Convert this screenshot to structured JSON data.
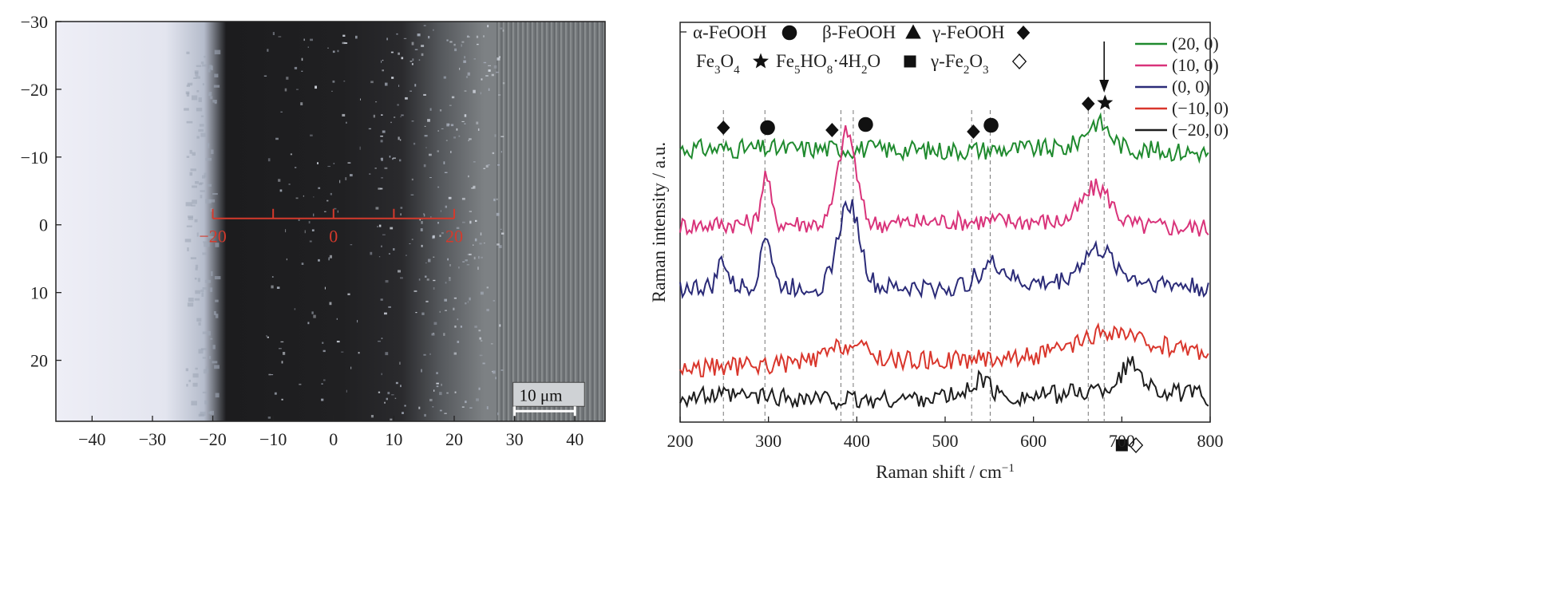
{
  "chart_data": [
    {
      "type": "image-with-axes",
      "xlim": [
        -46,
        45
      ],
      "ylim": [
        -30,
        29
      ],
      "x_ticks": [
        -40,
        -30,
        -20,
        -10,
        0,
        10,
        20,
        30,
        40
      ],
      "y_ticks": [
        -30,
        -20,
        -10,
        0,
        10,
        20
      ],
      "tick_labels_x": [
        "−40",
        "−30",
        "−20",
        "−10",
        "0",
        "10",
        "20",
        "30",
        "40"
      ],
      "tick_labels_y": [
        "−30",
        "−20",
        "−10",
        "0",
        "10",
        "20"
      ],
      "measurement_line": {
        "y": 0,
        "ticks": [
          -20,
          -10,
          0,
          10,
          20
        ],
        "labels": [
          "−20",
          "0",
          "20"
        ],
        "color": "#d43a2c"
      },
      "scale_bar": {
        "label": "10 μm",
        "length_um": 10,
        "x_start": 30,
        "y": 27.5
      }
    },
    {
      "type": "line",
      "xlabel": "Raman shift / cm",
      "xlabel_sup": "−1",
      "ylabel": "Raman intensity / a.u.",
      "xlim": [
        200,
        800
      ],
      "x_ticks": [
        200,
        300,
        400,
        500,
        600,
        700,
        800
      ],
      "x_tick_labels": [
        "200",
        "300",
        "400",
        "500",
        "600",
        "700",
        "800"
      ],
      "dashed_lines": [
        249,
        296,
        382,
        396,
        530,
        551,
        662,
        680
      ],
      "series": [
        {
          "name": "(20, 0)",
          "color": "#1f8a2e",
          "offset": 4,
          "base": [
            [
              200,
              0.05
            ],
            [
              300,
              0.05
            ],
            [
              400,
              0.05
            ],
            [
              500,
              0.03
            ],
            [
              600,
              0.05
            ],
            [
              700,
              0.05
            ],
            [
              800,
              0.0
            ]
          ],
          "peaks": [
            [
              672,
              0.3,
              14
            ]
          ]
        },
        {
          "name": "(10, 0)",
          "color": "#d9337a",
          "offset": 3,
          "base": [
            [
              200,
              0.05
            ],
            [
              300,
              0.08
            ],
            [
              400,
              0.06
            ],
            [
              500,
              0.1
            ],
            [
              600,
              0.1
            ],
            [
              700,
              0.05
            ],
            [
              800,
              0.02
            ]
          ],
          "peaks": [
            [
              297,
              0.55,
              5
            ],
            [
              389,
              1.05,
              10
            ],
            [
              672,
              0.42,
              16
            ]
          ]
        },
        {
          "name": "(0, 0)",
          "color": "#2b2b78",
          "offset": 2,
          "base": [
            [
              200,
              0.1
            ],
            [
              300,
              0.12
            ],
            [
              400,
              0.1
            ],
            [
              500,
              0.1
            ],
            [
              600,
              0.15
            ],
            [
              700,
              0.2
            ],
            [
              800,
              0.1
            ]
          ],
          "peaks": [
            [
              248,
              0.32,
              5
            ],
            [
              297,
              0.6,
              6
            ],
            [
              391,
              0.97,
              12
            ],
            [
              553,
              0.25,
              15
            ],
            [
              672,
              0.35,
              18
            ]
          ]
        },
        {
          "name": "(−10, 0)",
          "color": "#d9362c",
          "offset": 1,
          "base": [
            [
              200,
              0.05
            ],
            [
              300,
              0.1
            ],
            [
              400,
              0.15
            ],
            [
              500,
              0.15
            ],
            [
              600,
              0.2
            ],
            [
              700,
              0.38
            ],
            [
              800,
              0.25
            ]
          ],
          "peaks": [
            [
              390,
              0.18,
              20
            ],
            [
              680,
              0.12,
              20
            ]
          ]
        },
        {
          "name": "(−20, 0)",
          "color": "#1e1e1e",
          "offset": 0,
          "base": [
            [
              200,
              0.1
            ],
            [
              300,
              0.1
            ],
            [
              400,
              0.05
            ],
            [
              500,
              0.1
            ],
            [
              600,
              0.1
            ],
            [
              700,
              0.2
            ],
            [
              800,
              0.1
            ]
          ],
          "peaks": [
            [
              540,
              0.2,
              10
            ],
            [
              712,
              0.28,
              12
            ]
          ]
        }
      ],
      "legend": {
        "position": "top-right"
      },
      "phase_legend": [
        {
          "label": "α-FeOOH",
          "marker": "circle"
        },
        {
          "label": "β-FeOOH",
          "marker": "triangle"
        },
        {
          "label": "γ-FeOOH",
          "marker": "diamond"
        },
        {
          "label": "Fe",
          "sub1": "3",
          "label2": "O",
          "sub2": "4",
          "marker": "star"
        },
        {
          "label": "Fe",
          "sub1": "5",
          "label2": "HO",
          "sub2": "8",
          "tail": "·4H",
          "sub3": "2",
          "tail2": "O",
          "marker": "square"
        },
        {
          "label": "γ-Fe",
          "sub1": "2",
          "label2": "O",
          "sub2": "3",
          "marker": "open-diamond"
        }
      ],
      "peak_markers": [
        {
          "x": 249,
          "marker": "diamond"
        },
        {
          "x": 299,
          "marker": "circle"
        },
        {
          "x": 372,
          "marker": "diamond"
        },
        {
          "x": 410,
          "marker": "circle"
        },
        {
          "x": 532,
          "marker": "diamond"
        },
        {
          "x": 552,
          "marker": "circle"
        },
        {
          "x": 662,
          "marker": "diamond"
        },
        {
          "x": 681,
          "marker": "star"
        },
        {
          "x": 700,
          "marker": "square"
        },
        {
          "x": 716,
          "marker": "open-diamond"
        }
      ],
      "arrow_at": 680
    }
  ]
}
